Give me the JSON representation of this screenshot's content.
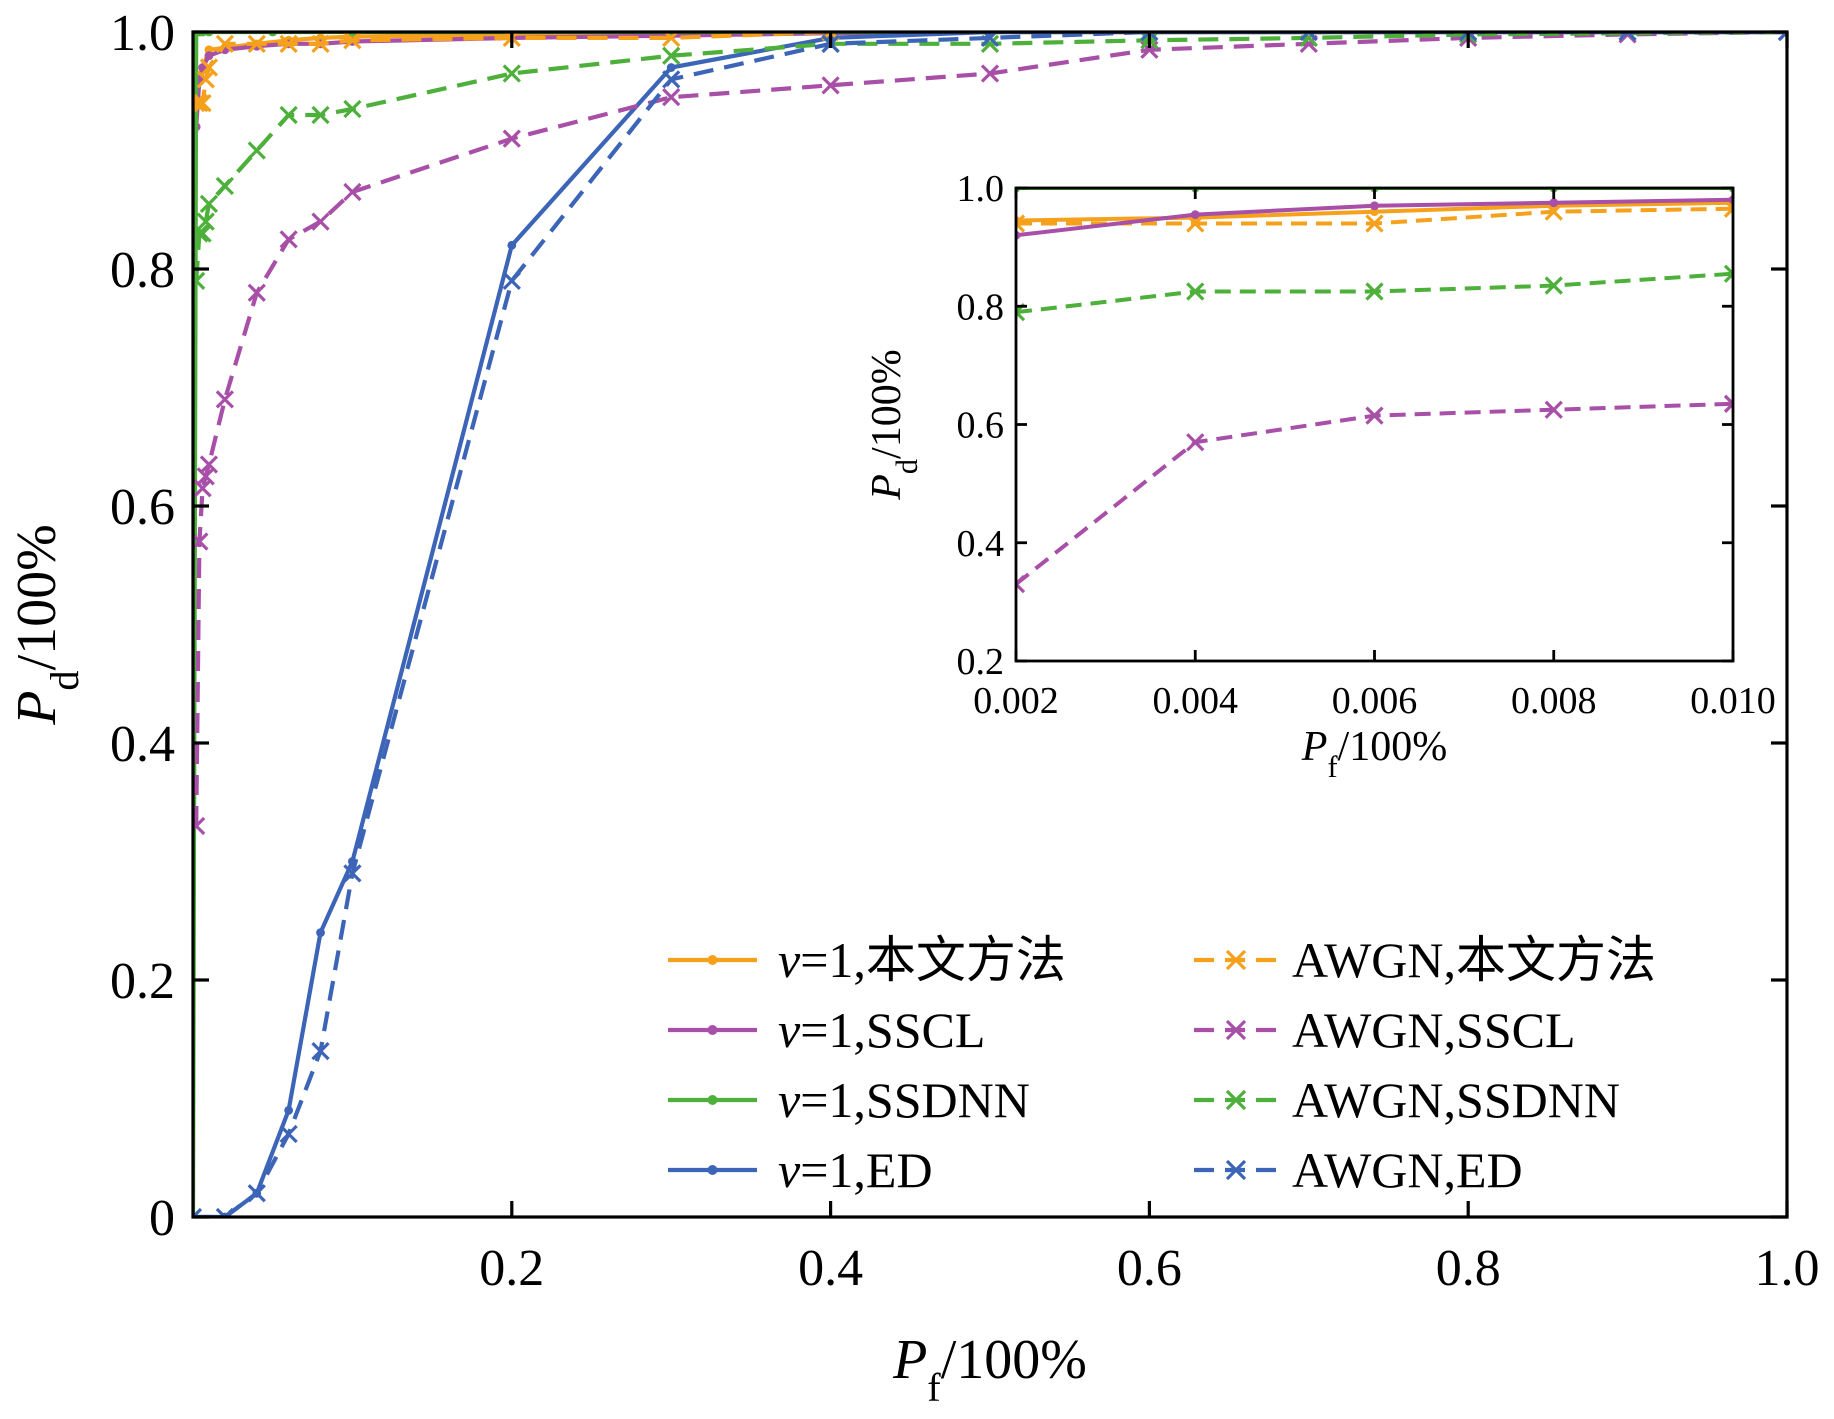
{
  "chart_data": [
    {
      "type": "line",
      "xlabel": {
        "symbol": "P",
        "sub": "f",
        "rest": "/100%"
      },
      "ylabel": {
        "symbol": "P",
        "sub": "d",
        "rest": "/100%"
      },
      "xlim": [
        0,
        1.0
      ],
      "ylim": [
        0,
        1.0
      ],
      "x_ticks": [
        {
          "value": 0.2,
          "label": "0.2"
        },
        {
          "value": 0.4,
          "label": "0.4"
        },
        {
          "value": 0.6,
          "label": "0.6"
        },
        {
          "value": 0.8,
          "label": "0.8"
        },
        {
          "value": 1.0,
          "label": "1.0"
        }
      ],
      "y_ticks": [
        {
          "value": 0,
          "label": "0"
        },
        {
          "value": 0.2,
          "label": "0.2"
        },
        {
          "value": 0.4,
          "label": "0.4"
        },
        {
          "value": 0.6,
          "label": "0.6"
        },
        {
          "value": 0.8,
          "label": "0.8"
        },
        {
          "value": 1.0,
          "label": "1.0"
        }
      ],
      "grid": false,
      "legend_position": "bottom-right",
      "series": [
        {
          "name": "v=1,本文方法",
          "legend_prefix": "v",
          "legend_rest": "=1,本文方法",
          "color": "#F5A11C",
          "dashed": false,
          "marker": "dot",
          "x": [
            0,
            0.002,
            0.01,
            0.04,
            0.06,
            0.08,
            0.1,
            0.2,
            0.3,
            0.4,
            1.0
          ],
          "y": [
            0.9,
            0.95,
            0.985,
            0.99,
            0.993,
            0.995,
            0.996,
            0.998,
            0.999,
            1.0,
            1.0
          ]
        },
        {
          "name": "v=1,SSCL",
          "legend_prefix": "v",
          "legend_rest": "=1,SSCL",
          "color": "#A84FA8",
          "dashed": false,
          "marker": "dot",
          "x": [
            0,
            0.002,
            0.004,
            0.006,
            0.01,
            0.02,
            0.04,
            0.06,
            0.08,
            0.1,
            0.2,
            0.3,
            0.4,
            0.5,
            1.0
          ],
          "y": [
            0.85,
            0.92,
            0.96,
            0.97,
            0.98,
            0.985,
            0.988,
            0.99,
            0.99,
            0.992,
            0.995,
            0.997,
            0.999,
            1.0,
            1.0
          ]
        },
        {
          "name": "v=1,SSDNN",
          "legend_prefix": "v",
          "legend_rest": "=1,SSDNN",
          "color": "#4DB03A",
          "dashed": false,
          "marker": "dot",
          "x": [
            0,
            0.002,
            0.004,
            0.006,
            0.01,
            0.05,
            0.1,
            0.2,
            0.3,
            0.4,
            0.5,
            1.0
          ],
          "y": [
            0,
            1.0,
            1.0,
            1.0,
            1.0,
            1.0,
            1.0,
            1.0,
            1.0,
            1.0,
            1.0,
            1.0
          ]
        },
        {
          "name": "v=1,ED",
          "legend_prefix": "v",
          "legend_rest": "=1,ED",
          "color": "#3C65B8",
          "dashed": false,
          "marker": "dot",
          "x": [
            0,
            0.02,
            0.04,
            0.06,
            0.08,
            0.1,
            0.2,
            0.3,
            0.4,
            0.5,
            0.6,
            1.0
          ],
          "y": [
            0,
            0,
            0.02,
            0.09,
            0.24,
            0.3,
            0.82,
            0.97,
            0.995,
            1.0,
            1.0,
            1.0
          ]
        },
        {
          "name": "AWGN,本文方法",
          "legend_prefix": "",
          "legend_rest": "AWGN,本文方法",
          "color": "#F5A11C",
          "dashed": true,
          "marker": "x",
          "x": [
            0.002,
            0.004,
            0.006,
            0.008,
            0.01,
            0.02,
            0.04,
            0.06,
            0.08,
            0.1,
            0.2,
            0.3,
            0.4
          ],
          "y": [
            0.94,
            0.94,
            0.94,
            0.96,
            0.97,
            0.99,
            0.99,
            0.99,
            0.99,
            0.993,
            0.995,
            0.995,
            1.0
          ]
        },
        {
          "name": "AWGN,SSCL",
          "legend_prefix": "",
          "legend_rest": "AWGN,SSCL",
          "color": "#A84FA8",
          "dashed": true,
          "marker": "x",
          "x": [
            0.002,
            0.004,
            0.006,
            0.008,
            0.01,
            0.02,
            0.04,
            0.06,
            0.08,
            0.1,
            0.2,
            0.3,
            0.4,
            0.5,
            0.6,
            0.7,
            0.8,
            0.9,
            1.0
          ],
          "y": [
            0.33,
            0.57,
            0.615,
            0.625,
            0.635,
            0.69,
            0.78,
            0.825,
            0.84,
            0.865,
            0.91,
            0.945,
            0.955,
            0.965,
            0.985,
            0.99,
            0.995,
            0.998,
            1.0
          ]
        },
        {
          "name": "AWGN,SSDNN",
          "legend_prefix": "",
          "legend_rest": "AWGN,SSDNN",
          "color": "#4DB03A",
          "dashed": true,
          "marker": "x",
          "x": [
            0.002,
            0.004,
            0.006,
            0.008,
            0.01,
            0.02,
            0.04,
            0.06,
            0.08,
            0.1,
            0.2,
            0.3,
            0.4,
            0.5,
            0.6,
            0.7,
            0.8,
            1.0
          ],
          "y": [
            0.79,
            0.83,
            0.83,
            0.84,
            0.855,
            0.87,
            0.9,
            0.93,
            0.93,
            0.935,
            0.965,
            0.98,
            0.99,
            0.99,
            0.993,
            0.995,
            0.998,
            1.0
          ]
        },
        {
          "name": "AWGN,ED",
          "legend_prefix": "",
          "legend_rest": "AWGN,ED",
          "color": "#3C65B8",
          "dashed": true,
          "marker": "x",
          "x": [
            0,
            0.02,
            0.04,
            0.06,
            0.08,
            0.1,
            0.2,
            0.3,
            0.4,
            0.5,
            0.6,
            0.7,
            0.8,
            0.9,
            1.0
          ],
          "y": [
            0,
            0,
            0.02,
            0.07,
            0.14,
            0.29,
            0.79,
            0.96,
            0.99,
            0.995,
            1.0,
            1.0,
            1.0,
            1.0,
            1.0
          ]
        }
      ]
    },
    {
      "type": "line",
      "xlabel": {
        "symbol": "P",
        "sub": "f",
        "rest": "/100%"
      },
      "ylabel": {
        "symbol": "P",
        "sub": "d",
        "rest": "/100%"
      },
      "xlim": [
        0.002,
        0.01
      ],
      "ylim": [
        0.2,
        1.0
      ],
      "x_ticks": [
        {
          "value": 0.002,
          "label": "0.002"
        },
        {
          "value": 0.004,
          "label": "0.004"
        },
        {
          "value": 0.006,
          "label": "0.006"
        },
        {
          "value": 0.008,
          "label": "0.008"
        },
        {
          "value": 0.01,
          "label": "0.010"
        }
      ],
      "y_ticks": [
        {
          "value": 0.2,
          "label": "0.2"
        },
        {
          "value": 0.4,
          "label": "0.4"
        },
        {
          "value": 0.6,
          "label": "0.6"
        },
        {
          "value": 0.8,
          "label": "0.8"
        },
        {
          "value": 1.0,
          "label": "1.0"
        }
      ],
      "grid": false,
      "series": [
        {
          "name": "v=1,SSDNN",
          "color": "#4DB03A",
          "dashed": false,
          "marker": "dot",
          "x": [
            0.002,
            0.004,
            0.006,
            0.008,
            0.01
          ],
          "y": [
            1.0,
            1.0,
            1.0,
            1.0,
            1.0
          ]
        },
        {
          "name": "v=1,本文方法",
          "color": "#F5A11C",
          "dashed": false,
          "marker": "dot",
          "x": [
            0.002,
            0.004,
            0.006,
            0.008,
            0.01
          ],
          "y": [
            0.945,
            0.95,
            0.96,
            0.97,
            0.975
          ]
        },
        {
          "name": "AWGN,本文方法",
          "color": "#F5A11C",
          "dashed": true,
          "marker": "x",
          "x": [
            0.002,
            0.004,
            0.006,
            0.008,
            0.01
          ],
          "y": [
            0.94,
            0.94,
            0.94,
            0.96,
            0.965
          ]
        },
        {
          "name": "v=1,SSCL",
          "color": "#A84FA8",
          "dashed": false,
          "marker": "dot",
          "x": [
            0.002,
            0.004,
            0.006,
            0.008,
            0.01
          ],
          "y": [
            0.92,
            0.955,
            0.97,
            0.975,
            0.98
          ]
        },
        {
          "name": "AWGN,SSDNN",
          "color": "#4DB03A",
          "dashed": true,
          "marker": "x",
          "x": [
            0.002,
            0.004,
            0.006,
            0.008,
            0.01
          ],
          "y": [
            0.79,
            0.825,
            0.825,
            0.835,
            0.855
          ]
        },
        {
          "name": "AWGN,SSCL",
          "color": "#A84FA8",
          "dashed": true,
          "marker": "x",
          "x": [
            0.002,
            0.004,
            0.006,
            0.008,
            0.01
          ],
          "y": [
            0.33,
            0.57,
            0.615,
            0.625,
            0.635
          ]
        }
      ]
    }
  ]
}
